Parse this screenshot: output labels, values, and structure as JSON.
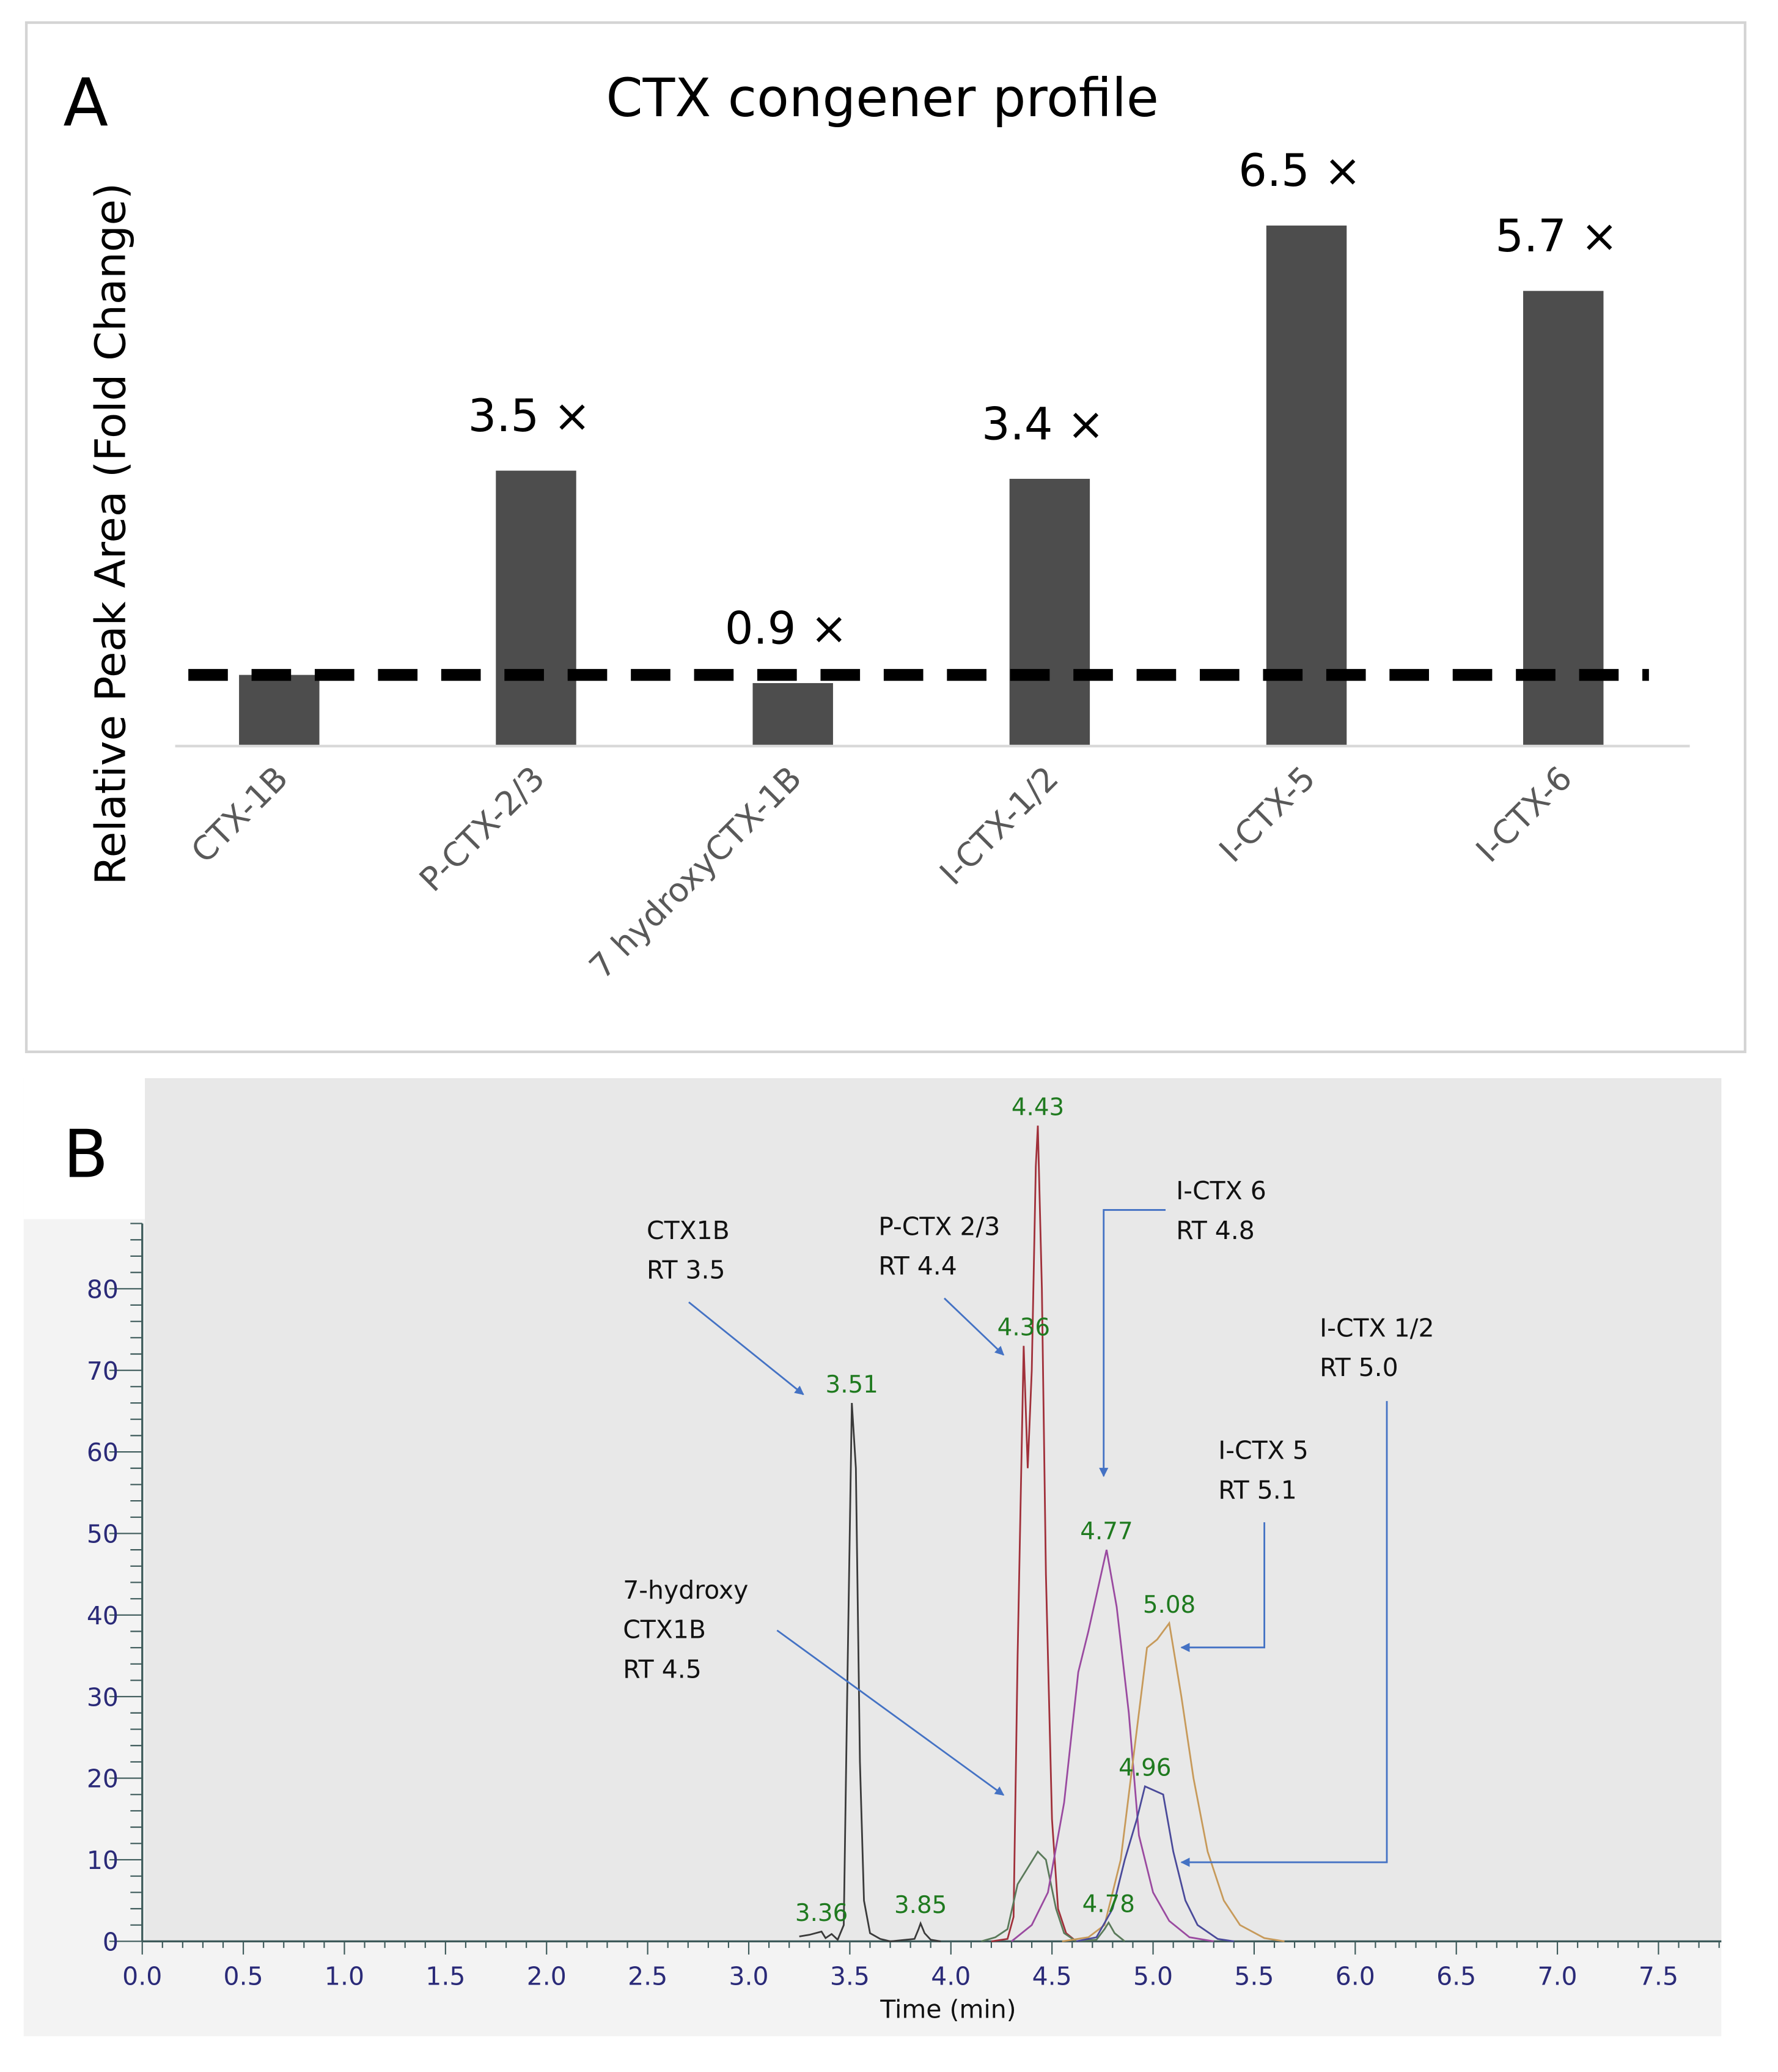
{
  "chart_data": [
    {
      "panel": "A",
      "type": "bar",
      "title": "CTX congener profile",
      "xlabel": "",
      "ylabel": "Relative Peak Area (Fold Change)",
      "categories": [
        "CTX-1B",
        "P-CTX-2/3",
        "7 hydroxyCTX-1B",
        "I-CTX-1/2",
        "I-CTX-5",
        "I-CTX-6"
      ],
      "values": [
        1.0,
        3.5,
        0.9,
        3.4,
        6.5,
        5.7
      ],
      "data_labels": [
        "",
        "3.5 ×",
        "0.9 ×",
        "3.4 ×",
        "6.5 ×",
        "5.7 ×"
      ],
      "reference_line": {
        "value": 1.0,
        "style": "dashed"
      },
      "bar_color": "#4d4d4d",
      "grid": false
    },
    {
      "panel": "B",
      "type": "line",
      "xlabel": "Time (min)",
      "ylabel": "",
      "xlim": [
        0.0,
        7.8
      ],
      "ylim": [
        0,
        88
      ],
      "xticks": [
        "0.0",
        "0.5",
        "1.0",
        "1.5",
        "2.0",
        "2.5",
        "3.0",
        "3.5",
        "4.0",
        "4.5",
        "5.0",
        "5.5",
        "6.0",
        "6.5",
        "7.0",
        "7.5"
      ],
      "yticks": [
        "0",
        "10",
        "20",
        "30",
        "40",
        "50",
        "60",
        "70",
        "80"
      ],
      "series": [
        {
          "name": "CTX1B",
          "color": "#3a3a3a",
          "points": [
            [
              3.25,
              0.6
            ],
            [
              3.3,
              0.8
            ],
            [
              3.36,
              1.2
            ],
            [
              3.38,
              0.4
            ],
            [
              3.41,
              0.9
            ],
            [
              3.44,
              0.2
            ],
            [
              3.47,
              2
            ],
            [
              3.49,
              35
            ],
            [
              3.51,
              66
            ],
            [
              3.53,
              58
            ],
            [
              3.55,
              22
            ],
            [
              3.57,
              5
            ],
            [
              3.6,
              1
            ],
            [
              3.65,
              0.3
            ],
            [
              3.7,
              0
            ],
            [
              3.82,
              0.3
            ],
            [
              3.84,
              1.5
            ],
            [
              3.85,
              2.2
            ],
            [
              3.87,
              1
            ],
            [
              3.9,
              0.2
            ],
            [
              3.95,
              0
            ]
          ]
        },
        {
          "name": "P-CTX 2/3",
          "color": "#a0303a",
          "points": [
            [
              4.2,
              0
            ],
            [
              4.28,
              0.3
            ],
            [
              4.31,
              3
            ],
            [
              4.33,
              35
            ],
            [
              4.36,
              73
            ],
            [
              4.38,
              58
            ],
            [
              4.4,
              70
            ],
            [
              4.42,
              95
            ],
            [
              4.43,
              100
            ],
            [
              4.45,
              80
            ],
            [
              4.47,
              45
            ],
            [
              4.5,
              15
            ],
            [
              4.53,
              4
            ],
            [
              4.57,
              1
            ],
            [
              4.62,
              0
            ]
          ]
        },
        {
          "name": "7-hydroxy CTX1B",
          "color": "#5a7a5a",
          "points": [
            [
              4.15,
              0
            ],
            [
              4.22,
              0.5
            ],
            [
              4.28,
              1.5
            ],
            [
              4.33,
              7
            ],
            [
              4.38,
              9
            ],
            [
              4.43,
              11
            ],
            [
              4.47,
              10
            ],
            [
              4.52,
              4
            ],
            [
              4.56,
              1
            ],
            [
              4.62,
              0
            ],
            [
              4.72,
              0.2
            ],
            [
              4.76,
              1.5
            ],
            [
              4.78,
              2.3
            ],
            [
              4.81,
              1
            ],
            [
              4.86,
              0
            ]
          ]
        },
        {
          "name": "I-CTX 6",
          "color": "#9a4aa0",
          "points": [
            [
              4.3,
              0
            ],
            [
              4.4,
              2
            ],
            [
              4.48,
              6
            ],
            [
              4.56,
              17
            ],
            [
              4.63,
              33
            ],
            [
              4.68,
              38
            ],
            [
              4.77,
              48
            ],
            [
              4.82,
              41
            ],
            [
              4.88,
              28
            ],
            [
              4.93,
              13
            ],
            [
              5.0,
              6
            ],
            [
              5.08,
              2.5
            ],
            [
              5.18,
              0.5
            ],
            [
              5.3,
              0
            ]
          ]
        },
        {
          "name": "I-CTX 5",
          "color": "#c79a5a",
          "points": [
            [
              4.55,
              0
            ],
            [
              4.68,
              0.5
            ],
            [
              4.76,
              2
            ],
            [
              4.84,
              10
            ],
            [
              4.9,
              22
            ],
            [
              4.97,
              36
            ],
            [
              5.02,
              37
            ],
            [
              5.08,
              39
            ],
            [
              5.14,
              30
            ],
            [
              5.2,
              20
            ],
            [
              5.27,
              11
            ],
            [
              5.35,
              5
            ],
            [
              5.43,
              2
            ],
            [
              5.55,
              0.4
            ],
            [
              5.65,
              0
            ]
          ]
        },
        {
          "name": "I-CTX 1/2",
          "color": "#4a4a9a",
          "points": [
            [
              4.62,
              0
            ],
            [
              4.72,
              0.5
            ],
            [
              4.8,
              4
            ],
            [
              4.86,
              10
            ],
            [
              4.92,
              15
            ],
            [
              4.96,
              19
            ],
            [
              5.05,
              18
            ],
            [
              5.1,
              11
            ],
            [
              5.16,
              5
            ],
            [
              5.22,
              2
            ],
            [
              5.32,
              0.3
            ],
            [
              5.4,
              0
            ]
          ]
        }
      ],
      "peak_labels": [
        {
          "text": "4.43",
          "time": 4.43,
          "intensity": 100
        },
        {
          "text": "4.36",
          "time": 4.36,
          "intensity": 73
        },
        {
          "text": "3.51",
          "time": 3.51,
          "intensity": 66
        },
        {
          "text": "4.77",
          "time": 4.77,
          "intensity": 48
        },
        {
          "text": "5.08",
          "time": 5.08,
          "intensity": 39
        },
        {
          "text": "4.96",
          "time": 4.96,
          "intensity": 19
        },
        {
          "text": "4.78",
          "time": 4.78,
          "intensity": 2.3
        },
        {
          "text": "3.36",
          "time": 3.36,
          "intensity": 1.2
        },
        {
          "text": "3.85",
          "time": 3.85,
          "intensity": 2.2
        }
      ],
      "annotations": {
        "ctx1b": [
          "CTX1B",
          "RT 3.5"
        ],
        "pctx23": [
          "P-CTX 2/3",
          "RT 4.4"
        ],
        "ictx6": [
          "I-CTX 6",
          "RT 4.8"
        ],
        "ictx12": [
          "I-CTX 1/2",
          "RT 5.0"
        ],
        "ictx5": [
          "I-CTX 5",
          "RT 5.1"
        ],
        "hydroxy": [
          "7-hydroxy",
          "CTX1B",
          "RT 4.5"
        ]
      },
      "arrow_color": "#4472c4",
      "peak_label_color": "#1f7a1f"
    }
  ],
  "panel_labels": {
    "a": "A",
    "b": "B"
  }
}
